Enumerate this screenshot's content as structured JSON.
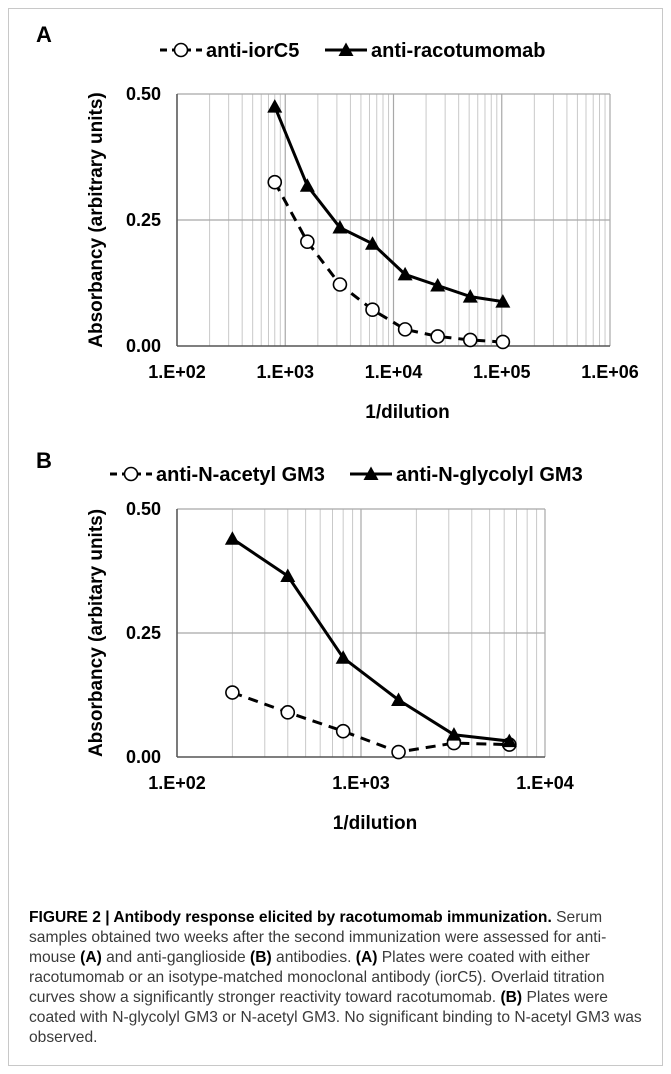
{
  "chart_data": [
    {
      "type": "line",
      "panel": "A",
      "x_scale": "log",
      "xlim": [
        100,
        1000000
      ],
      "ylim": [
        0,
        0.5
      ],
      "x_tick_labels": [
        "1.E+02",
        "1.E+03",
        "1.E+04",
        "1.E+05",
        "1.E+06"
      ],
      "y_tick_labels": [
        "0.00",
        "0.25",
        "0.50"
      ],
      "xlabel": "1/dilution",
      "ylabel": "Absorbancy (arbitrary units)",
      "legend_position": "top",
      "series": [
        {
          "name": "anti-iorC5",
          "style": "dashed",
          "marker": "open-circle",
          "x": [
            800,
            1600,
            3200,
            6400,
            12800,
            25600,
            51200,
            102400
          ],
          "y": [
            0.325,
            0.207,
            0.122,
            0.072,
            0.033,
            0.019,
            0.012,
            0.008
          ]
        },
        {
          "name": "anti-racotumomab",
          "style": "solid",
          "marker": "filled-triangle",
          "x": [
            800,
            1600,
            3200,
            6400,
            12800,
            25600,
            51200,
            102400
          ],
          "y": [
            0.475,
            0.318,
            0.235,
            0.203,
            0.142,
            0.12,
            0.098,
            0.088
          ]
        }
      ]
    },
    {
      "type": "line",
      "panel": "B",
      "x_scale": "log",
      "xlim": [
        100,
        10000
      ],
      "ylim": [
        0,
        0.5
      ],
      "x_tick_labels": [
        "1.E+02",
        "1.E+03",
        "1.E+04"
      ],
      "y_tick_labels": [
        "0.00",
        "0.25",
        "0.50"
      ],
      "xlabel": "1/dilution",
      "ylabel": "Absorbancy (arbitary units)",
      "legend_position": "top",
      "series": [
        {
          "name": "anti-N-acetyl GM3",
          "style": "dashed",
          "marker": "open-circle",
          "x": [
            200,
            400,
            800,
            1600,
            3200,
            6400
          ],
          "y": [
            0.13,
            0.09,
            0.052,
            0.01,
            0.028,
            0.025
          ]
        },
        {
          "name": "anti-N-glycolyl GM3",
          "style": "solid",
          "marker": "filled-triangle",
          "x": [
            200,
            400,
            800,
            1600,
            3200,
            6400
          ],
          "y": [
            0.44,
            0.365,
            0.2,
            0.115,
            0.045,
            0.032
          ]
        }
      ]
    }
  ],
  "caption": {
    "title": "FIGURE 2 | Antibody response elicited by racotumomab immunization.",
    "p1": " Serum samples obtained two weeks after the second immunization were assessed for anti-mouse ",
    "ref_a1": "(A)",
    "p2": " and anti-ganglioside ",
    "ref_b1": "(B)",
    "p3": " antibodies. ",
    "ref_a2": "(A)",
    "p4": " Plates were coated with either racotumomab or an isotype-matched monoclonal antibody (iorC5). Overlaid titration curves show a significantly stronger reactivity toward racotumomab. ",
    "ref_b2": "(B)",
    "p5": " Plates were coated with N-glycolyl GM3 or N-acetyl GM3. No significant binding to N-acetyl GM3 was observed."
  }
}
